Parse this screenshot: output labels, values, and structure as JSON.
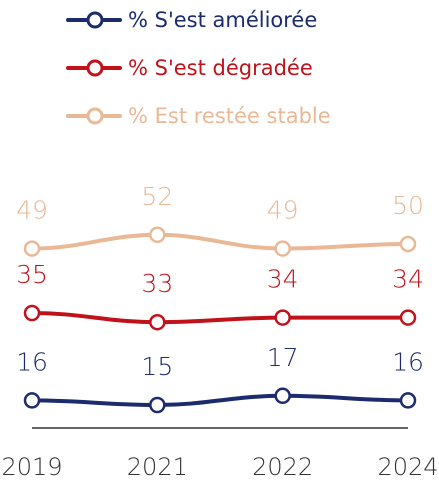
{
  "chart_data": {
    "type": "line",
    "categories": [
      "2019",
      "2021",
      "2022",
      "2024"
    ],
    "series": [
      {
        "name": "% S'est améliorée",
        "color": "#1c2b6e",
        "values": [
          16,
          15,
          17,
          16
        ]
      },
      {
        "name": "% S'est dégradée",
        "color": "#c1121c",
        "values": [
          35,
          33,
          34,
          34
        ]
      },
      {
        "name": "% Est restée stable",
        "color": "#e9b896",
        "values": [
          49,
          52,
          49,
          50
        ]
      }
    ],
    "ylim": [
      10,
      60
    ]
  }
}
